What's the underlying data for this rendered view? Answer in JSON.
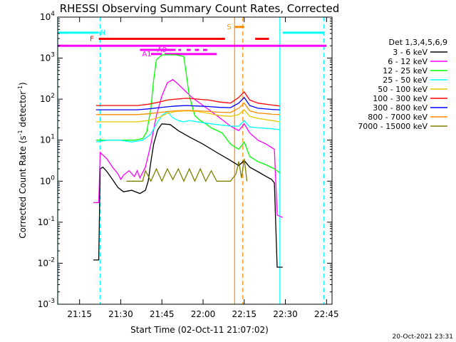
{
  "chart_data": {
    "type": "line",
    "title": "RHESSI Observing Summary Count Rates, Corrected",
    "xlabel": "Start Time (02-Oct-11 21:07:02)",
    "ylabel_main": "Corrected Count Rate (s",
    "ylabel_sup1": "-1",
    "ylabel_mid": " detector",
    "ylabel_sup2": "-1",
    "ylabel_end": ")",
    "y_scale": "log",
    "xlim": [
      "21:07:02",
      "22:47:00"
    ],
    "ylim": [
      0.001,
      10000
    ],
    "x_ticks": [
      "21:15",
      "21:30",
      "21:45",
      "22:00",
      "22:15",
      "22:30",
      "22:45"
    ],
    "y_ticks": [
      {
        "value": 0.001,
        "base": "10",
        "exp": "-3"
      },
      {
        "value": 0.01,
        "base": "10",
        "exp": "-2"
      },
      {
        "value": 0.1,
        "base": "10",
        "exp": "-1"
      },
      {
        "value": 1,
        "base": "10",
        "exp": "0"
      },
      {
        "value": 10,
        "base": "10",
        "exp": "1"
      },
      {
        "value": 100,
        "base": "10",
        "exp": "2"
      },
      {
        "value": 1000,
        "base": "10",
        "exp": "3"
      },
      {
        "value": 10000,
        "base": "10",
        "exp": "4"
      }
    ],
    "legend_title": "Det 1,3,4,5,6,9",
    "legend_position": "right",
    "timestamp": "20-Oct-2021 23:31",
    "series": [
      {
        "name": "3 - 6 keV",
        "color": "#000000",
        "x": [
          "21:20:00",
          "21:22:00",
          "21:22:30",
          "21:23:30",
          "21:25:00",
          "21:27:00",
          "21:29:00",
          "21:31:00",
          "21:34:00",
          "21:37:00",
          "21:39:00",
          "21:40:00",
          "21:41:00",
          "21:42:00",
          "21:43:30",
          "21:45:00",
          "21:48:00",
          "21:51:00",
          "21:55:00",
          "22:00:00",
          "22:05:00",
          "22:10:00",
          "22:13:00",
          "22:15:00",
          "22:17:00",
          "22:20:00",
          "22:23:00",
          "22:25:00",
          "22:26:00",
          "22:27:00",
          "22:29:00"
        ],
        "y": [
          0.012,
          0.012,
          2.0,
          2.2,
          1.7,
          1.1,
          0.7,
          0.55,
          0.6,
          0.5,
          0.6,
          1.0,
          3.0,
          8.0,
          18,
          25,
          24,
          17,
          12,
          8,
          5,
          3.2,
          2.4,
          3.2,
          2.2,
          1.7,
          1.3,
          1.1,
          0.9,
          0.008,
          0.008
        ]
      },
      {
        "name": "6 - 12 keV",
        "color": "#ff00ff",
        "x": [
          "21:20:00",
          "21:22:00",
          "21:22:30",
          "21:25:00",
          "21:27:00",
          "21:29:00",
          "21:30:00",
          "21:31:00",
          "21:33:00",
          "21:35:00",
          "21:36:00",
          "21:37:00",
          "21:39:00",
          "21:41:00",
          "21:43:00",
          "21:45:00",
          "21:47:00",
          "21:49:00",
          "21:51:00",
          "21:53:00",
          "21:56:00",
          "22:00:00",
          "22:05:00",
          "22:10:00",
          "22:13:00",
          "22:15:00",
          "22:17:00",
          "22:20:00",
          "22:23:00",
          "22:26:00",
          "22:27:00",
          "22:29:00"
        ],
        "y": [
          0.3,
          0.3,
          5,
          3.5,
          2.2,
          1.5,
          1.1,
          1.4,
          1.8,
          1.3,
          1.8,
          1.2,
          2.2,
          8,
          40,
          120,
          250,
          300,
          230,
          170,
          110,
          70,
          40,
          22,
          17,
          25,
          15,
          10,
          8,
          6,
          0.15,
          0.13
        ]
      },
      {
        "name": "12 - 25 keV",
        "color": "#00ff00",
        "x": [
          "21:21:00",
          "21:28:00",
          "21:35:00",
          "21:38:00",
          "21:39:30",
          "21:41:00",
          "21:42:00",
          "21:43:00",
          "21:45:00",
          "21:50:00",
          "21:53:00",
          "21:55:00",
          "21:57:00",
          "21:59:00",
          "22:01:00",
          "22:03:00",
          "22:07:00",
          "22:10:00",
          "22:13:00",
          "22:15:00",
          "22:17:00",
          "22:20:00",
          "22:23:00",
          "22:26:00",
          "22:28:00"
        ],
        "y": [
          10,
          10,
          10,
          11,
          16,
          60,
          300,
          900,
          1200,
          1200,
          1100,
          120,
          40,
          30,
          25,
          20,
          15,
          8,
          6,
          9,
          4,
          3,
          2.5,
          2,
          1.6
        ]
      },
      {
        "name": "25 - 50 keV",
        "color": "#00ffff",
        "x": [
          "21:21:00",
          "21:25:00",
          "21:30:00",
          "21:34:00",
          "21:38:00",
          "21:41:00",
          "21:43:00",
          "21:45:00",
          "21:47:00",
          "21:49:00",
          "21:51:00",
          "21:53:00",
          "21:55:00",
          "21:58:00",
          "22:01:00",
          "22:05:00",
          "22:10:00",
          "22:13:00",
          "22:15:00",
          "22:17:00",
          "22:20:00",
          "22:25:00",
          "22:28:00"
        ],
        "y": [
          9,
          10,
          10,
          9,
          10,
          14,
          25,
          40,
          50,
          35,
          30,
          28,
          30,
          28,
          26,
          24,
          22,
          22,
          30,
          21,
          20,
          19,
          18
        ]
      },
      {
        "name": "50 - 100 keV",
        "color": "#e6c800",
        "x": [
          "21:21:00",
          "21:30:00",
          "21:36:00",
          "21:40:00",
          "21:44:00",
          "21:47:00",
          "21:50:00",
          "21:54:00",
          "21:58:00",
          "22:02:00",
          "22:06:00",
          "22:10:00",
          "22:13:00",
          "22:15:00",
          "22:17:00",
          "22:20:00",
          "22:25:00",
          "22:28:00"
        ],
        "y": [
          28,
          28,
          28,
          30,
          36,
          45,
          50,
          52,
          50,
          45,
          40,
          38,
          42,
          55,
          38,
          34,
          30,
          28
        ]
      },
      {
        "name": "100 - 300 keV",
        "color": "#ff0000",
        "x": [
          "21:21:00",
          "21:30:00",
          "21:36:00",
          "21:40:00",
          "21:44:00",
          "21:47:00",
          "21:50:00",
          "21:54:00",
          "21:58:00",
          "22:02:00",
          "22:06:00",
          "22:10:00",
          "22:13:00",
          "22:15:00",
          "22:17:00",
          "22:20:00",
          "22:25:00",
          "22:28:00"
        ],
        "y": [
          70,
          70,
          70,
          75,
          85,
          95,
          100,
          105,
          100,
          95,
          85,
          80,
          110,
          150,
          95,
          80,
          72,
          68
        ]
      },
      {
        "name": "300 - 800 keV",
        "color": "#0000ff",
        "x": [
          "21:21:00",
          "21:30:00",
          "21:36:00",
          "21:40:00",
          "21:44:00",
          "21:47:00",
          "21:50:00",
          "21:54:00",
          "21:58:00",
          "22:02:00",
          "22:06:00",
          "22:10:00",
          "22:13:00",
          "22:15:00",
          "22:17:00",
          "22:20:00",
          "22:25:00",
          "22:28:00"
        ],
        "y": [
          55,
          55,
          55,
          58,
          62,
          65,
          68,
          70,
          68,
          66,
          63,
          62,
          80,
          110,
          70,
          60,
          56,
          55
        ]
      },
      {
        "name": "800 - 7000 keV",
        "color": "#ff8c00",
        "x": [
          "21:21:00",
          "21:30:00",
          "21:36:00",
          "21:40:00",
          "21:44:00",
          "21:47:00",
          "21:50:00",
          "21:54:00",
          "21:58:00",
          "22:02:00",
          "22:06:00",
          "22:10:00",
          "22:13:00",
          "22:15:00",
          "22:17:00",
          "22:20:00",
          "22:25:00",
          "22:28:00"
        ],
        "y": [
          42,
          42,
          42,
          44,
          47,
          50,
          52,
          53,
          52,
          50,
          48,
          47,
          60,
          80,
          52,
          46,
          43,
          42
        ]
      },
      {
        "name": "7000 - 15000 keV",
        "color": "#808000",
        "x": [
          "21:32:00",
          "21:38:00",
          "21:39:00",
          "21:41:00",
          "21:43:00",
          "21:45:00",
          "21:47:00",
          "21:49:00",
          "21:51:00",
          "21:53:00",
          "21:55:00",
          "21:57:00",
          "21:59:00",
          "22:01:00",
          "22:03:00",
          "22:05:00",
          "22:07:00",
          "22:10:00",
          "22:12:00",
          "22:13:00",
          "22:14:00",
          "22:15:00",
          "22:16:00"
        ],
        "y": [
          1.0,
          1.0,
          1.8,
          1.0,
          2.0,
          1.0,
          2.0,
          1.1,
          2.0,
          1.0,
          2.0,
          1.0,
          2.0,
          1.0,
          1.8,
          1.0,
          1.0,
          1.0,
          1.5,
          3.0,
          1.2,
          3.5,
          1.0
        ]
      }
    ],
    "flags": [
      {
        "label": "N",
        "color": "#00ffff",
        "level_decades_from_top": 0.38,
        "segments": [
          [
            "21:07:02",
            "21:22:00"
          ],
          [
            "22:29:00",
            "22:44:00"
          ]
        ],
        "label_at": "21:23:30"
      },
      {
        "label": "S",
        "color": "#ff8c00",
        "level_decades_from_top": 0.24,
        "segments": [
          [
            "22:11:30",
            "22:15:00"
          ]
        ],
        "label_at": "22:09:30"
      },
      {
        "label": "F",
        "color": "#ff0000",
        "level_decades_from_top": 0.53,
        "segments": [
          [
            "21:22:00",
            "22:08:00"
          ],
          [
            "22:19:00",
            "22:24:00"
          ]
        ],
        "label_at": "21:19:30"
      },
      {
        "label": "",
        "color": "#ff00ff",
        "level_decades_from_top": 0.7,
        "segments": [
          [
            "21:07:02",
            "22:45:00"
          ]
        ],
        "label_at": ""
      },
      {
        "label": "A0",
        "color": "#ff00ff",
        "level_decades_from_top": 0.8,
        "segments": [
          [
            "21:37:00",
            "21:50:00"
          ],
          [
            "21:51:00",
            "21:52:00"
          ],
          [
            "21:54:00",
            "21:55:30"
          ],
          [
            "21:57:00",
            "21:58:30"
          ],
          [
            "22:00:00",
            "22:01:30"
          ]
        ],
        "label_at": "21:45:00"
      },
      {
        "label": "A1",
        "color": "#ff00ff",
        "level_decades_from_top": 0.9,
        "segments": [
          [
            "21:41:00",
            "21:45:00"
          ],
          [
            "21:46:00",
            "22:05:00"
          ]
        ],
        "label_at": "21:39:30"
      }
    ],
    "vertical_lines": [
      {
        "x": "21:07:02",
        "color": "#00ffff",
        "style": "solid"
      },
      {
        "x": "21:22:30",
        "color": "#00ffff",
        "style": "dashed"
      },
      {
        "x": "22:28:00",
        "color": "#00ffff",
        "style": "solid"
      },
      {
        "x": "22:44:00",
        "color": "#00ffff",
        "style": "dashed"
      },
      {
        "x": "22:11:30",
        "color": "#ff8c00",
        "style": "solid"
      },
      {
        "x": "22:14:30",
        "color": "#ff8c00",
        "style": "dashed"
      }
    ]
  }
}
